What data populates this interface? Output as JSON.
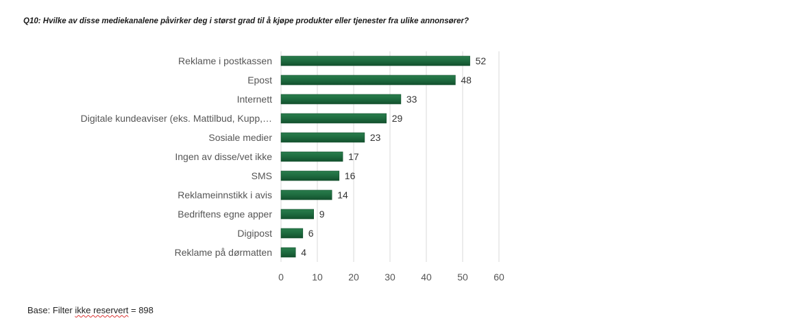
{
  "header": {
    "title": "Q10: Hvilke av disse mediekanalene påvirker deg i størst grad til å kjøpe produkter eller tjenester  fra ulike annonsører?"
  },
  "footer": {
    "base_prefix": "Base: Filter ",
    "base_marked": "ikke reservert",
    "base_suffix": " = 898"
  },
  "colors": {
    "bar": "#1e6b3f",
    "bar_dark": "#13502d",
    "grid": "#d9d9d9"
  },
  "chart_data": {
    "type": "bar",
    "orientation": "horizontal",
    "categories": [
      "Reklame i postkassen",
      "Epost",
      "Internett",
      "Digitale kundeaviser (eks. Mattilbud, Kupp,…",
      "Sosiale medier",
      "Ingen av disse/vet ikke",
      "SMS",
      "Reklameinnstikk i avis",
      "Bedriftens egne apper",
      "Digipost",
      "Reklame på dørmatten"
    ],
    "values": [
      52,
      48,
      33,
      29,
      23,
      17,
      16,
      14,
      9,
      6,
      4
    ],
    "xlim": [
      0,
      60
    ],
    "xticks": [
      0,
      10,
      20,
      30,
      40,
      50,
      60
    ],
    "grid": true,
    "data_labels": true
  }
}
